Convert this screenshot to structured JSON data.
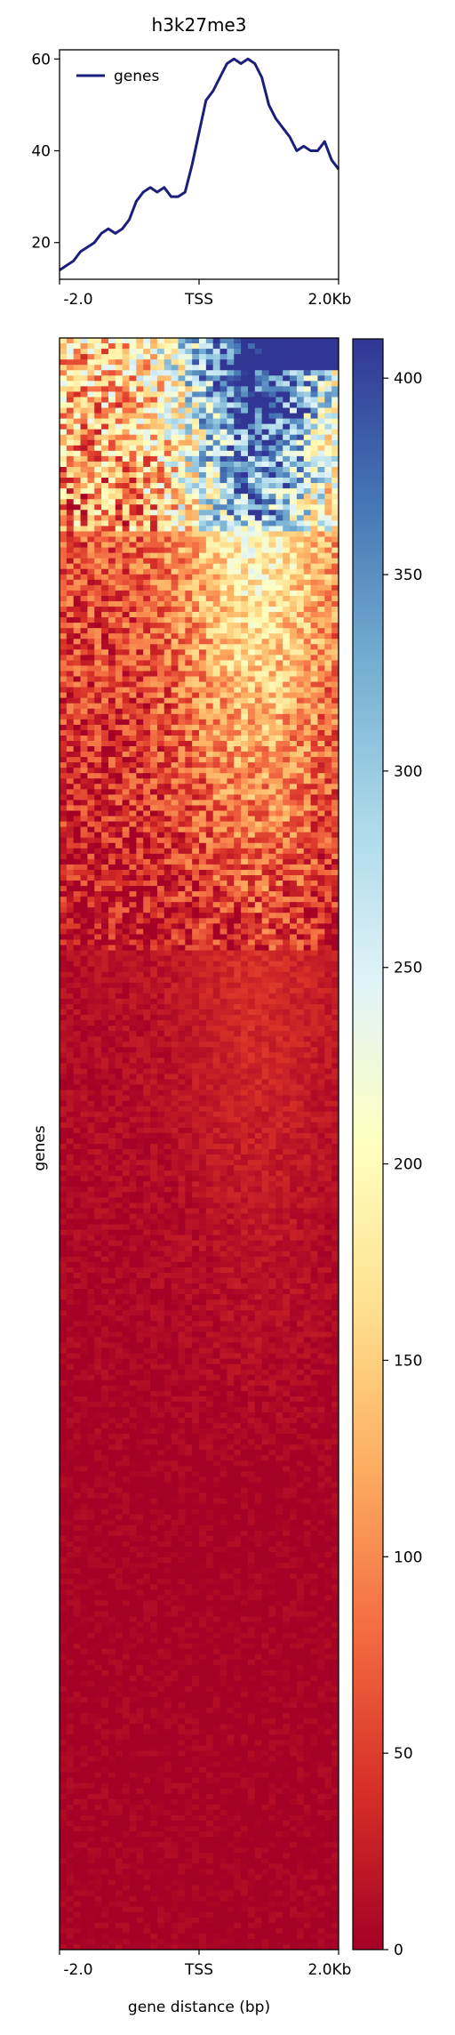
{
  "chart_data": [
    {
      "type": "line",
      "title": "h3k27me3",
      "xlabel": "",
      "ylabel": "",
      "x_ticks": [
        "-2.0",
        "TSS",
        "2.0Kb"
      ],
      "x_range": [
        -2000,
        2000
      ],
      "ylim": [
        12,
        62
      ],
      "y_ticks": [
        20,
        40,
        60
      ],
      "legend": {
        "placement": "top-left",
        "entries": [
          "genes"
        ]
      },
      "series": [
        {
          "name": "genes",
          "color": "#1a1f7a",
          "x": [
            -2000,
            -1900,
            -1800,
            -1700,
            -1600,
            -1500,
            -1400,
            -1300,
            -1200,
            -1100,
            -1000,
            -900,
            -800,
            -700,
            -600,
            -500,
            -400,
            -300,
            -200,
            -100,
            0,
            100,
            200,
            300,
            400,
            500,
            600,
            700,
            800,
            900,
            1000,
            1100,
            1200,
            1300,
            1400,
            1500,
            1600,
            1700,
            1800,
            1900,
            2000
          ],
          "y": [
            14,
            15,
            16,
            18,
            19,
            20,
            22,
            23,
            22,
            23,
            25,
            29,
            31,
            32,
            31,
            32,
            30,
            30,
            31,
            37,
            44,
            51,
            53,
            56,
            59,
            60,
            59,
            60,
            59,
            56,
            50,
            47,
            45,
            43,
            40,
            41,
            40,
            40,
            42,
            38,
            36
          ]
        }
      ]
    },
    {
      "type": "heatmap",
      "xlabel": "gene distance (bp)",
      "ylabel": "genes",
      "x_ticks": [
        "-2.0",
        "TSS",
        "2.0Kb"
      ],
      "colormap": "RdYlBu",
      "colorbar": {
        "min": 0,
        "max": 410,
        "ticks": [
          0,
          50,
          100,
          150,
          200,
          250,
          300,
          350,
          400
        ]
      },
      "description_of_values": {
        "n_columns": 40,
        "rows_sorted": "descending mean signal",
        "high_signal_band": "top ~12% of genes, saturated (>=400) near TSS and downstream",
        "medium_signal_band": "~12–38% of genes, 80–220, peak 0 to +1.5 Kb",
        "low_signal_band": "remaining ~62% of genes, 0–40"
      }
    }
  ]
}
